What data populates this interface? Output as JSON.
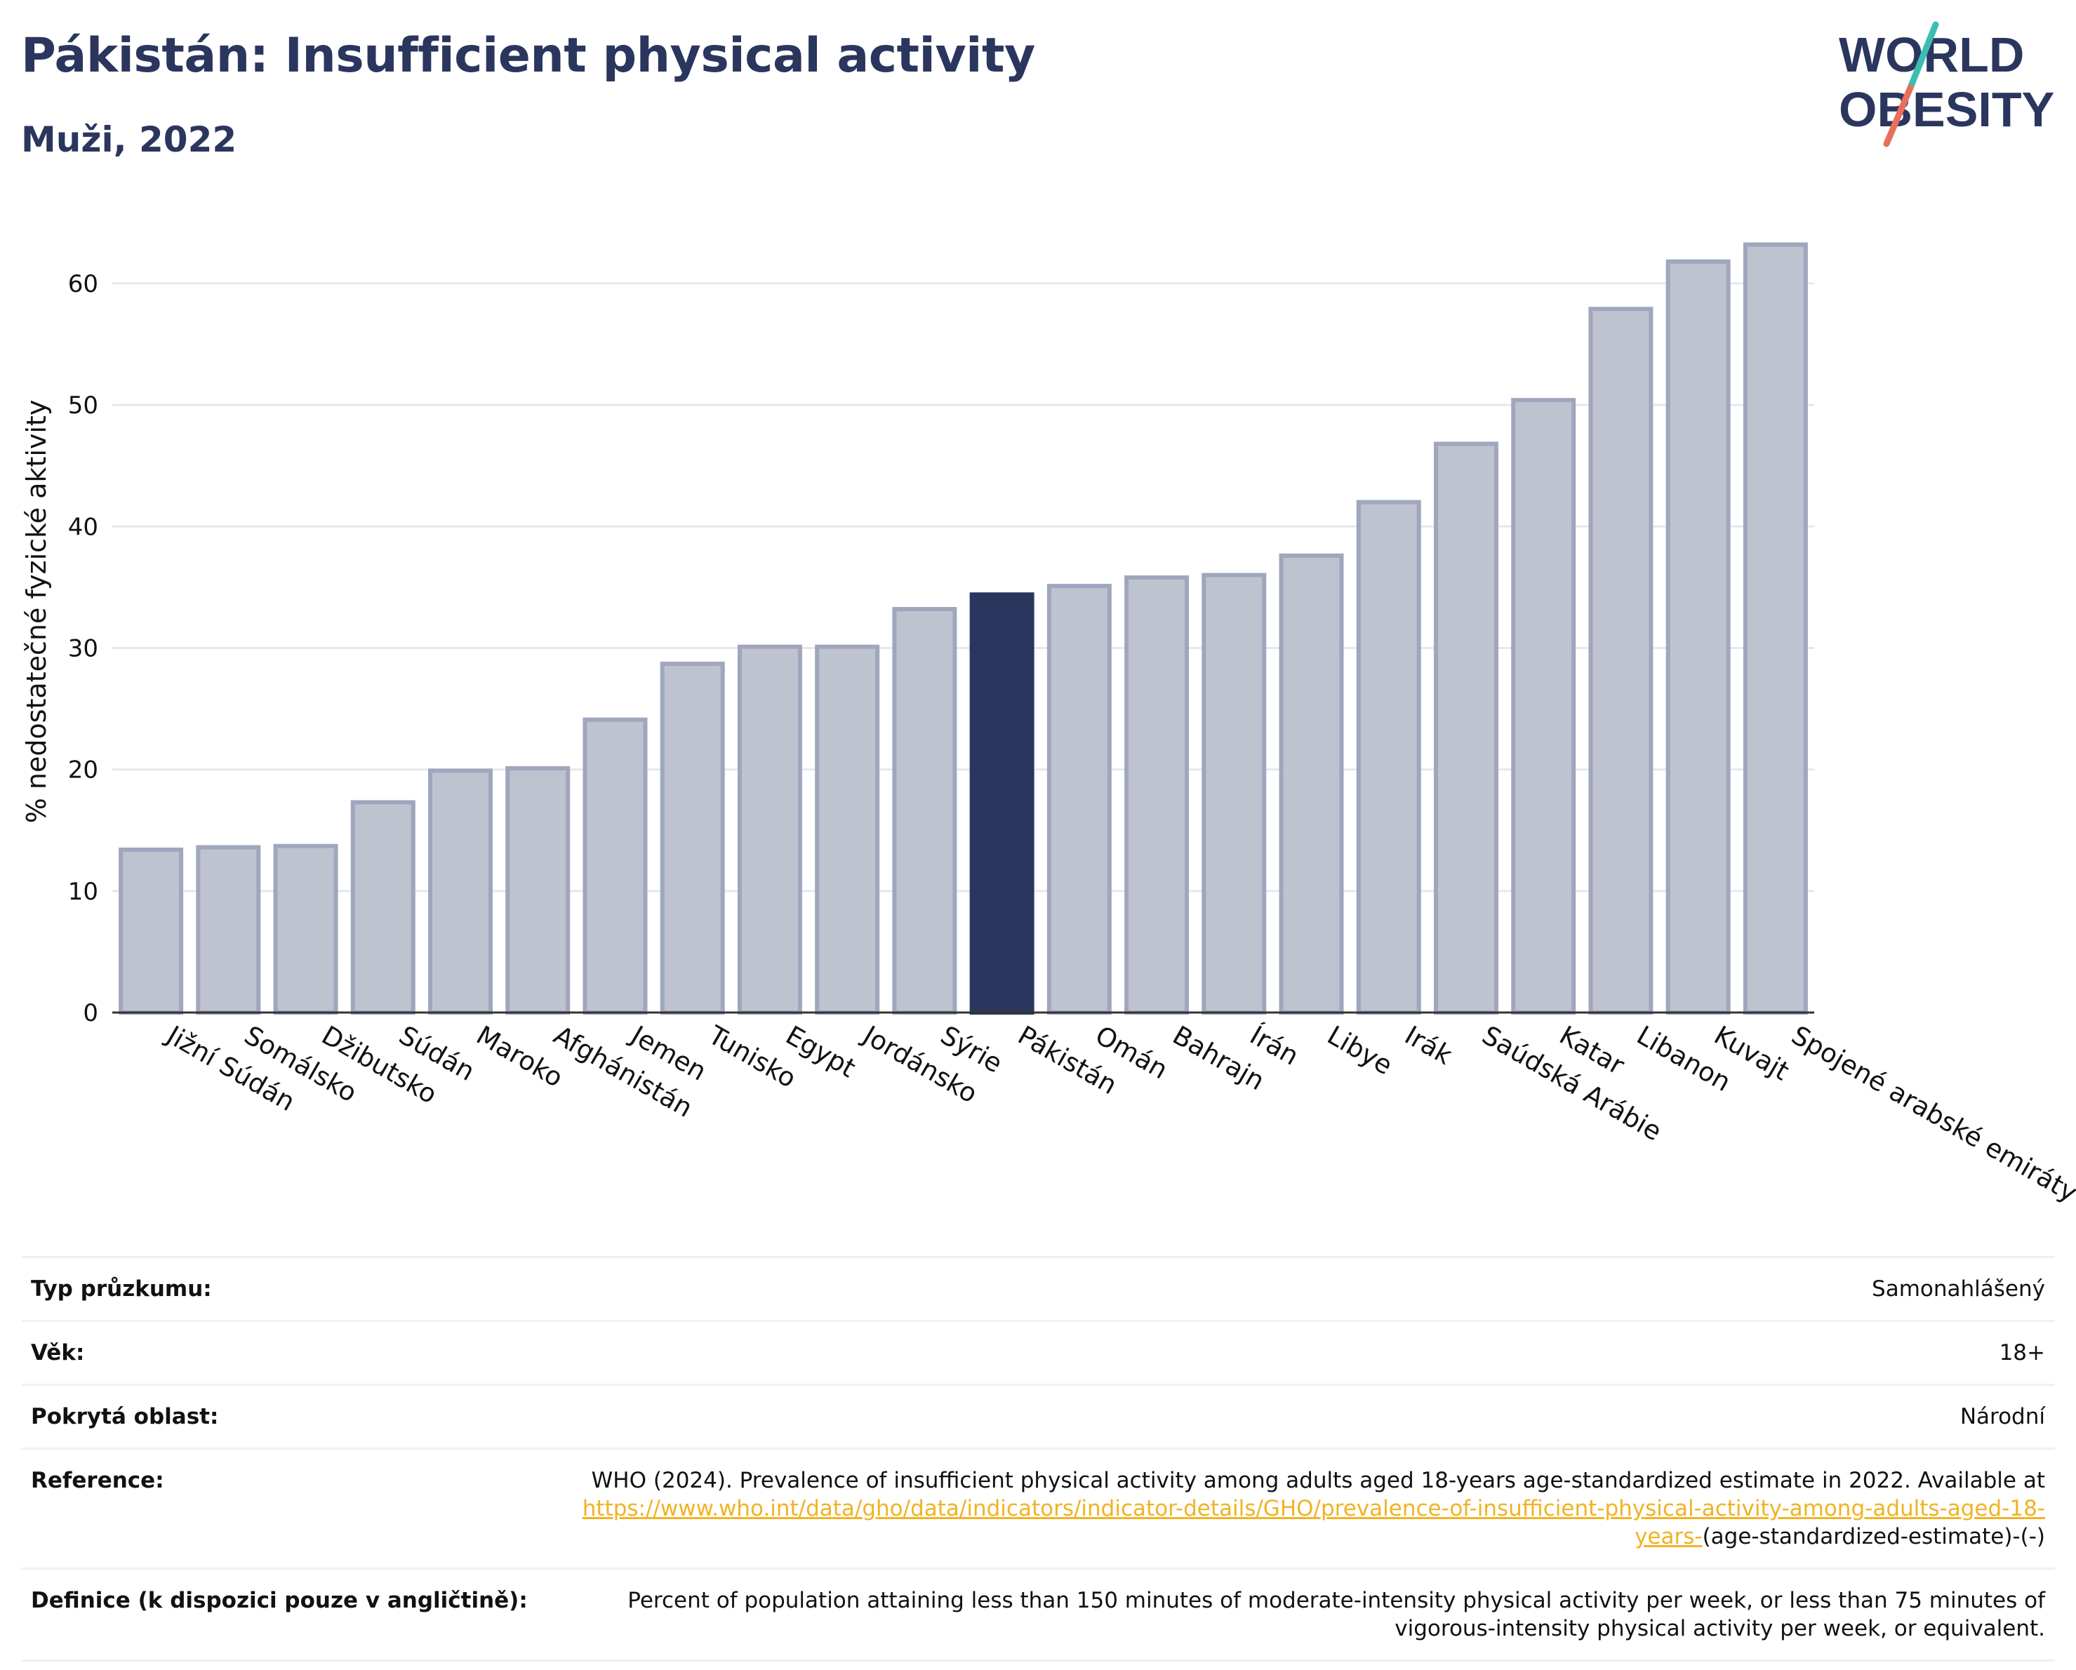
{
  "title": "Pákistán: Insufficient physical activity",
  "subtitle": "Muži, 2022",
  "logo": {
    "line1": "WORLD",
    "line2": "OBESITY"
  },
  "colors": {
    "highlight": "#2b365e",
    "bar_fill": "#bfc3d0",
    "bar_stroke": "#9fa6bd",
    "grid": "#e6e8ee",
    "link": "#f0b323"
  },
  "chart_data": {
    "type": "bar",
    "ylabel": "% nedostatečné fyzické aktivity",
    "xlabel": "",
    "ylim": [
      0,
      66
    ],
    "yticks": [
      0,
      10,
      20,
      30,
      40,
      50,
      60
    ],
    "grid": true,
    "highlight": "Pákistán",
    "categories": [
      "Jižní Súdán",
      "Somálsko",
      "Džibutsko",
      "Súdán",
      "Maroko",
      "Afghánistán",
      "Jemen",
      "Tunisko",
      "Egypt",
      "Jordánsko",
      "Sýrie",
      "Pákistán",
      "Omán",
      "Bahrajn",
      "Írán",
      "Libye",
      "Irák",
      "Saúdská Arábie",
      "Katar",
      "Libanon",
      "Kuvajt",
      "Spojené arabské emiráty"
    ],
    "values": [
      13.4,
      13.6,
      13.7,
      17.3,
      19.9,
      20.1,
      24.1,
      28.7,
      30.1,
      30.1,
      33.2,
      34.4,
      35.1,
      35.8,
      36.0,
      37.6,
      42.0,
      46.8,
      50.4,
      57.9,
      61.8,
      63.2
    ]
  },
  "info": [
    {
      "label": "Typ průzkumu:",
      "value": "Samonahlášený"
    },
    {
      "label": "Věk:",
      "value": "18+"
    },
    {
      "label": "Pokrytá oblast:",
      "value": "Národní"
    },
    {
      "label": "Reference:",
      "value": "WHO (2024). Prevalence of insufficient physical activity among adults aged 18-years age-standardized estimate in 2022. Available at",
      "link": "https://www.who.int/data/gho/data/indicators/indicator-details/GHO/prevalence-of-insufficient-physical-activity-among-adults-aged-18-years-",
      "suffix": "(age-standardized-estimate)-(-)"
    },
    {
      "label": "Definice (k dispozici pouze v angličtině):",
      "value": "Percent of population attaining less than 150 minutes of moderate-intensity physical activity per week, or less than 75 minutes of vigorous-intensity physical activity per week, or equivalent."
    }
  ]
}
